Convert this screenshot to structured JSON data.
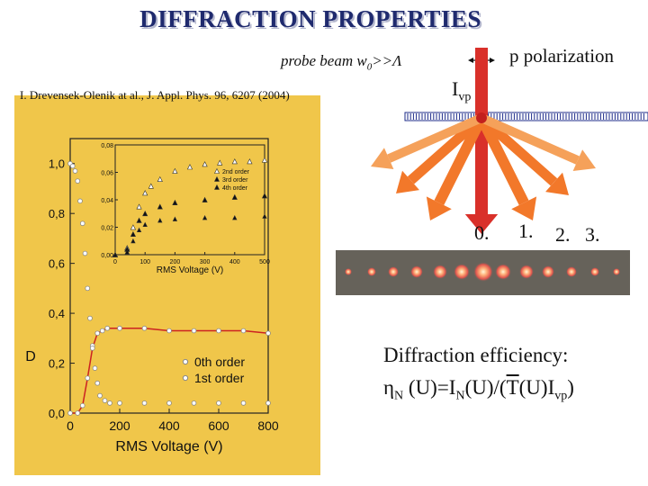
{
  "slide": {
    "title": "DIFFRACTION PROPERTIES",
    "probe_text": "probe beam w",
    "probe_sub": "0",
    "probe_rest": ">>Λ",
    "polarization": "p polarization",
    "beam_label": "I",
    "beam_sub": "vp",
    "citation": "I. Drevensek-Olenik at al., J. Appl. Phys. 96, 6207 (2004)",
    "orders": [
      "0.",
      "1.",
      "2.",
      "3."
    ],
    "efficiency_title": "Diffraction efficiency:",
    "formula": {
      "eta": "η",
      "sub_n": "N",
      "part1": " (U)=I",
      "sub_n2": "N",
      "part2": "(U)/(",
      "tbar": "T",
      "part3": "(U)I",
      "sub_vp": "vp",
      "part4": ")"
    }
  },
  "colors": {
    "title": "#1f2a6e",
    "panel": "#f0c64a",
    "beam_red": "#d9302a",
    "beam_orange": "#f2782a",
    "beam_light_orange": "#f5a15a",
    "spots_bg": "#66625a"
  },
  "chart_data": [
    {
      "type": "scatter",
      "title": "",
      "xlabel": "RMS Voltage (V)",
      "ylabel": "D",
      "xlim": [
        0,
        800
      ],
      "ylim": [
        0.0,
        1.1
      ],
      "xticks": [
        0,
        200,
        400,
        600,
        800
      ],
      "yticks": [
        0.0,
        0.2,
        0.4,
        0.6,
        0.8,
        1.0
      ],
      "ytick_labels": [
        "0,0",
        "0,2",
        "0,4",
        "0,6",
        "0,8",
        "1,0"
      ],
      "legend_position": "bottom-right",
      "series": [
        {
          "name": "0th order",
          "x": [
            0,
            10,
            20,
            30,
            40,
            50,
            60,
            70,
            80,
            90,
            100,
            110,
            120,
            140,
            160,
            200,
            300,
            400,
            500,
            600,
            700,
            800
          ],
          "values": [
            1.0,
            0.99,
            0.97,
            0.93,
            0.85,
            0.76,
            0.64,
            0.5,
            0.38,
            0.27,
            0.18,
            0.12,
            0.07,
            0.05,
            0.04,
            0.04,
            0.04,
            0.04,
            0.04,
            0.04,
            0.04,
            0.04
          ]
        },
        {
          "name": "1st order",
          "x": [
            0,
            30,
            50,
            70,
            90,
            110,
            130,
            150,
            200,
            300,
            400,
            500,
            600,
            700,
            800
          ],
          "values": [
            0.0,
            0.0,
            0.03,
            0.14,
            0.26,
            0.32,
            0.33,
            0.34,
            0.34,
            0.34,
            0.33,
            0.33,
            0.33,
            0.33,
            0.32
          ]
        }
      ]
    },
    {
      "type": "scatter",
      "title": "",
      "xlabel": "RMS Voltage (V)",
      "ylabel": "",
      "xlim": [
        0,
        500
      ],
      "ylim": [
        0.0,
        0.08
      ],
      "xticks": [
        0,
        100,
        200,
        300,
        400,
        500
      ],
      "yticks": [
        0.0,
        0.02,
        0.04,
        0.06,
        0.08
      ],
      "ytick_labels": [
        "0,00",
        "0,02",
        "0,04",
        "0,06",
        "0,08"
      ],
      "legend_position": "top-right",
      "series": [
        {
          "name": "2nd order",
          "x": [
            0,
            40,
            60,
            80,
            100,
            120,
            150,
            200,
            250,
            300,
            350,
            400,
            450,
            500
          ],
          "values": [
            0.0,
            0.005,
            0.02,
            0.035,
            0.045,
            0.05,
            0.055,
            0.061,
            0.064,
            0.066,
            0.067,
            0.068,
            0.068,
            0.069
          ]
        },
        {
          "name": "3rd order",
          "x": [
            0,
            40,
            60,
            80,
            100,
            150,
            200,
            300,
            400,
            500
          ],
          "values": [
            0.0,
            0.004,
            0.015,
            0.025,
            0.03,
            0.035,
            0.038,
            0.04,
            0.042,
            0.043
          ]
        },
        {
          "name": "4th order",
          "x": [
            0,
            40,
            60,
            80,
            100,
            150,
            200,
            300,
            400,
            500
          ],
          "values": [
            0.0,
            0.002,
            0.01,
            0.018,
            0.022,
            0.025,
            0.026,
            0.027,
            0.027,
            0.028
          ]
        }
      ]
    }
  ]
}
